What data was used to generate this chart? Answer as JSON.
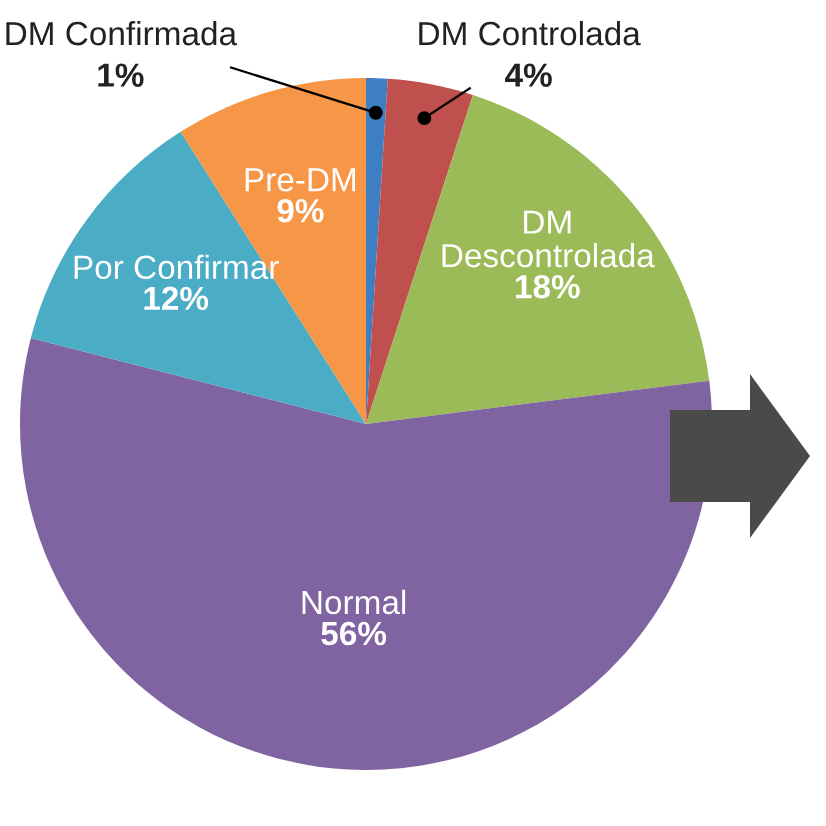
{
  "chart_data": {
    "type": "pie",
    "categories": [
      "DM Confirmada",
      "DM Controlada",
      "DM\nDescontrolada",
      "Normal",
      "Por Confirmar",
      "Pre-DM"
    ],
    "values": [
      1,
      4,
      18,
      56,
      12,
      9
    ],
    "value_labels": [
      "1%",
      "4%",
      "18%",
      "56%",
      "12%",
      "9%"
    ],
    "colors": [
      "#3d7fc2",
      "#c0504d",
      "#9bbb59",
      "#8064a2",
      "#4bacc6",
      "#f79646"
    ]
  }
}
